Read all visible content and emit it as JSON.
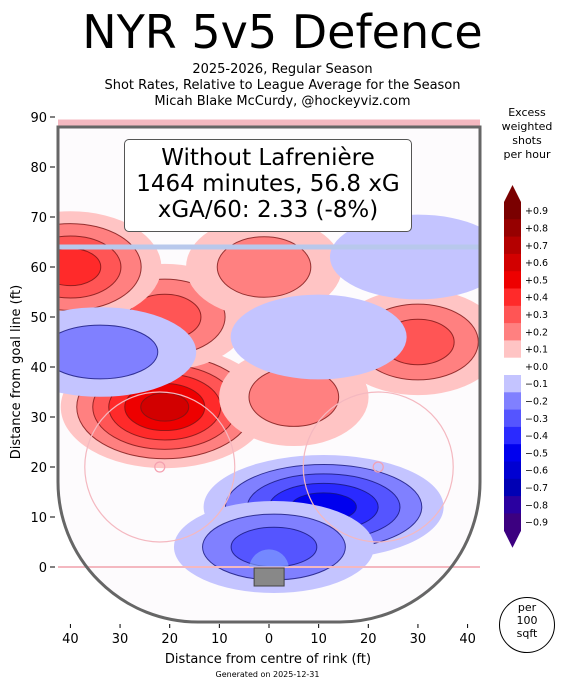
{
  "title": "NYR 5v5 Defence",
  "subtitle": [
    "2025-2026, Regular Season",
    "Shot Rates, Relative to League Average for the Season",
    "Micah Blake McCurdy, @hockeyviz.com"
  ],
  "footer": "Generated on 2025-12-31",
  "annotation": [
    "Without Lafrenière",
    "1464 minutes, 56.8 xG",
    "xGA/60: 2.33 (-8%)"
  ],
  "colorbar": {
    "title": [
      "Excess",
      "weighted",
      "shots",
      "per hour"
    ],
    "labels": [
      "+0.9",
      "+0.8",
      "+0.7",
      "+0.6",
      "+0.5",
      "+0.4",
      "+0.3",
      "+0.2",
      "+0.1",
      "+0.0",
      "−0.1",
      "−0.2",
      "−0.3",
      "−0.4",
      "−0.5",
      "−0.6",
      "−0.7",
      "−0.8",
      "−0.9"
    ],
    "colors": [
      "#7a0000",
      "#960000",
      "#b40000",
      "#d20000",
      "#ee0000",
      "#ff2a2a",
      "#ff5555",
      "#ff8080",
      "#ffc4c4",
      "#ffffff",
      "#c4c4ff",
      "#8080ff",
      "#5555ff",
      "#2a2aff",
      "#0000ee",
      "#0000d2",
      "#0000b4",
      "#2a00a0",
      "#3c0080"
    ]
  },
  "per_area": [
    "per",
    "100",
    "sqft"
  ],
  "chart_data": {
    "type": "heatmap",
    "xlabel": "Distance from centre of rink (ft)",
    "ylabel": "Distance from goal line (ft)",
    "xlim": [
      -42.5,
      42.5
    ],
    "ylim": [
      -11,
      90
    ],
    "xticks": [
      -40,
      -30,
      -20,
      -10,
      0,
      10,
      20,
      30,
      40
    ],
    "xtick_labels": [
      "40",
      "30",
      "20",
      "10",
      "0",
      "10",
      "20",
      "30",
      "40"
    ],
    "yticks": [
      0,
      10,
      20,
      30,
      40,
      50,
      60,
      70,
      80,
      90
    ],
    "ytick_labels": [
      "0",
      "10",
      "20",
      "30",
      "40",
      "50",
      "60",
      "70",
      "80",
      "90"
    ],
    "hotspots": [
      {
        "x": -21,
        "y": 32,
        "value": 0.6
      },
      {
        "x": -21,
        "y": 50,
        "value": 0.3
      },
      {
        "x": -40,
        "y": 60,
        "value": 0.4
      },
      {
        "x": -1,
        "y": 60,
        "value": 0.2
      },
      {
        "x": 30,
        "y": 45,
        "value": 0.3
      },
      {
        "x": 5,
        "y": 34,
        "value": 0.15
      },
      {
        "x": -34,
        "y": 43,
        "value": -0.2
      },
      {
        "x": 11,
        "y": 12,
        "value": -0.5
      },
      {
        "x": 30,
        "y": 62,
        "value": -0.1
      },
      {
        "x": 10,
        "y": 46,
        "value": -0.1
      },
      {
        "x": 1,
        "y": 4,
        "value": -0.25
      }
    ]
  }
}
